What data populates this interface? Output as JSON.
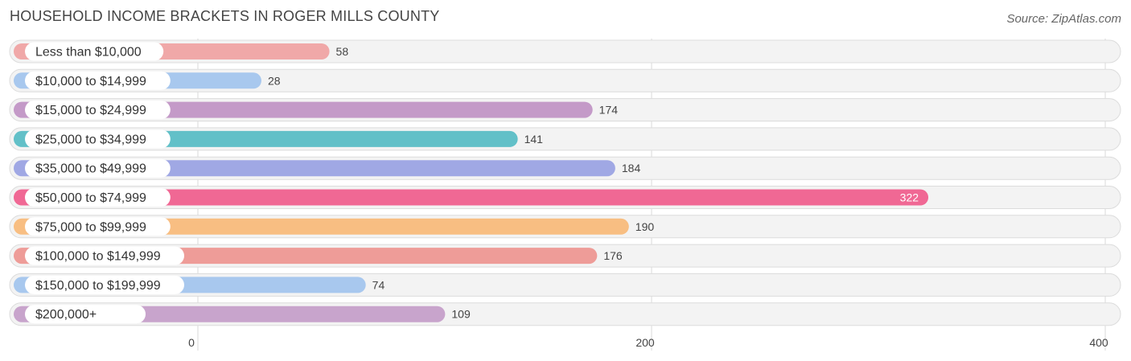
{
  "chart_data": {
    "type": "bar",
    "orientation": "horizontal",
    "title": "HOUSEHOLD INCOME BRACKETS IN ROGER MILLS COUNTY",
    "source": "Source: ZipAtlas.com",
    "categories": [
      "Less than $10,000",
      "$10,000 to $14,999",
      "$15,000 to $24,999",
      "$25,000 to $34,999",
      "$35,000 to $49,999",
      "$50,000 to $74,999",
      "$75,000 to $99,999",
      "$100,000 to $149,999",
      "$150,000 to $199,999",
      "$200,000+"
    ],
    "values": [
      58,
      28,
      174,
      141,
      184,
      322,
      190,
      176,
      74,
      109
    ],
    "colors": [
      "#f0a8a8",
      "#a8c8ee",
      "#c49ac8",
      "#62c0c8",
      "#a0a8e4",
      "#f06894",
      "#f8be82",
      "#ee9c98",
      "#a8c8ee",
      "#c8a4cc"
    ],
    "xlim": [
      0,
      400
    ],
    "xticks": [
      "0",
      "200",
      "400"
    ],
    "grid": true,
    "legend": "none"
  }
}
